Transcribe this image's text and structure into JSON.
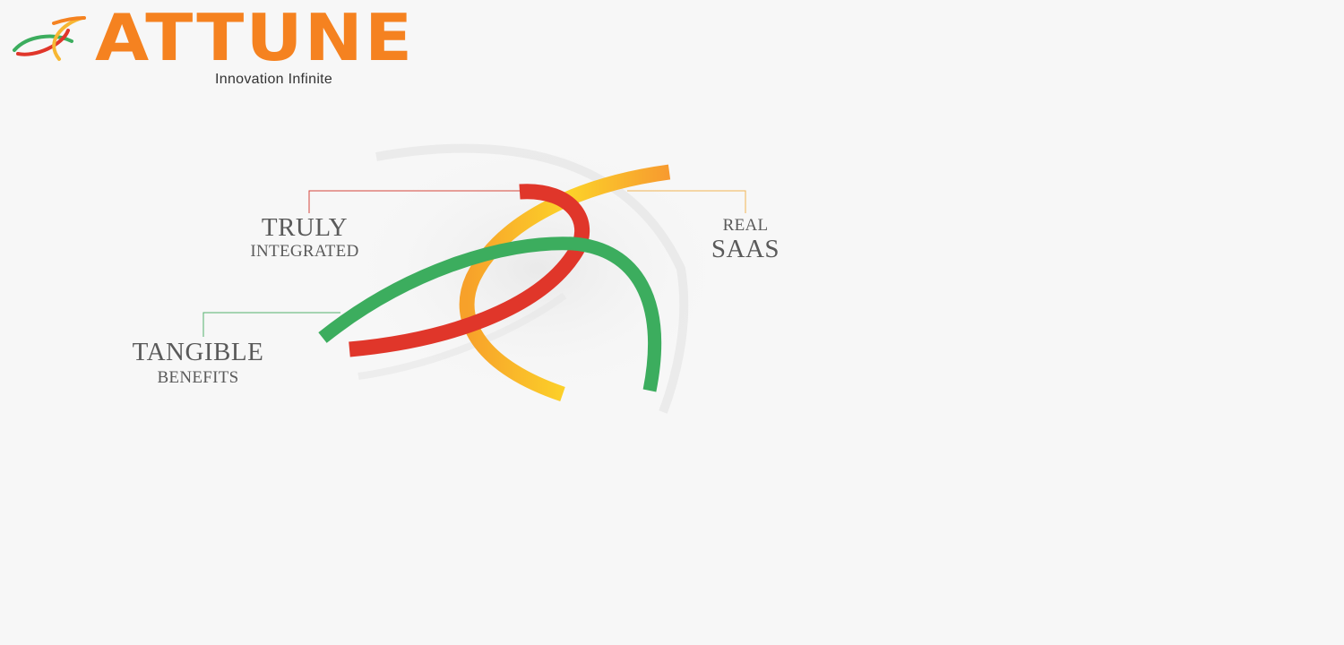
{
  "brand": {
    "name": "ATTUNE",
    "tagline": "Innovation Infinite",
    "colors": {
      "orange": "#f58220",
      "red": "#e0362a",
      "yellow": "#f7b733",
      "green": "#3cad5e",
      "text": "#5a5a5a"
    }
  },
  "callouts": {
    "truly": {
      "main": "TRULY",
      "sub": "INTEGRATED"
    },
    "real": {
      "top": "REAL",
      "main": "SAAS"
    },
    "tangible": {
      "main": "TANGIBLE",
      "sub": "BENEFITS"
    }
  }
}
